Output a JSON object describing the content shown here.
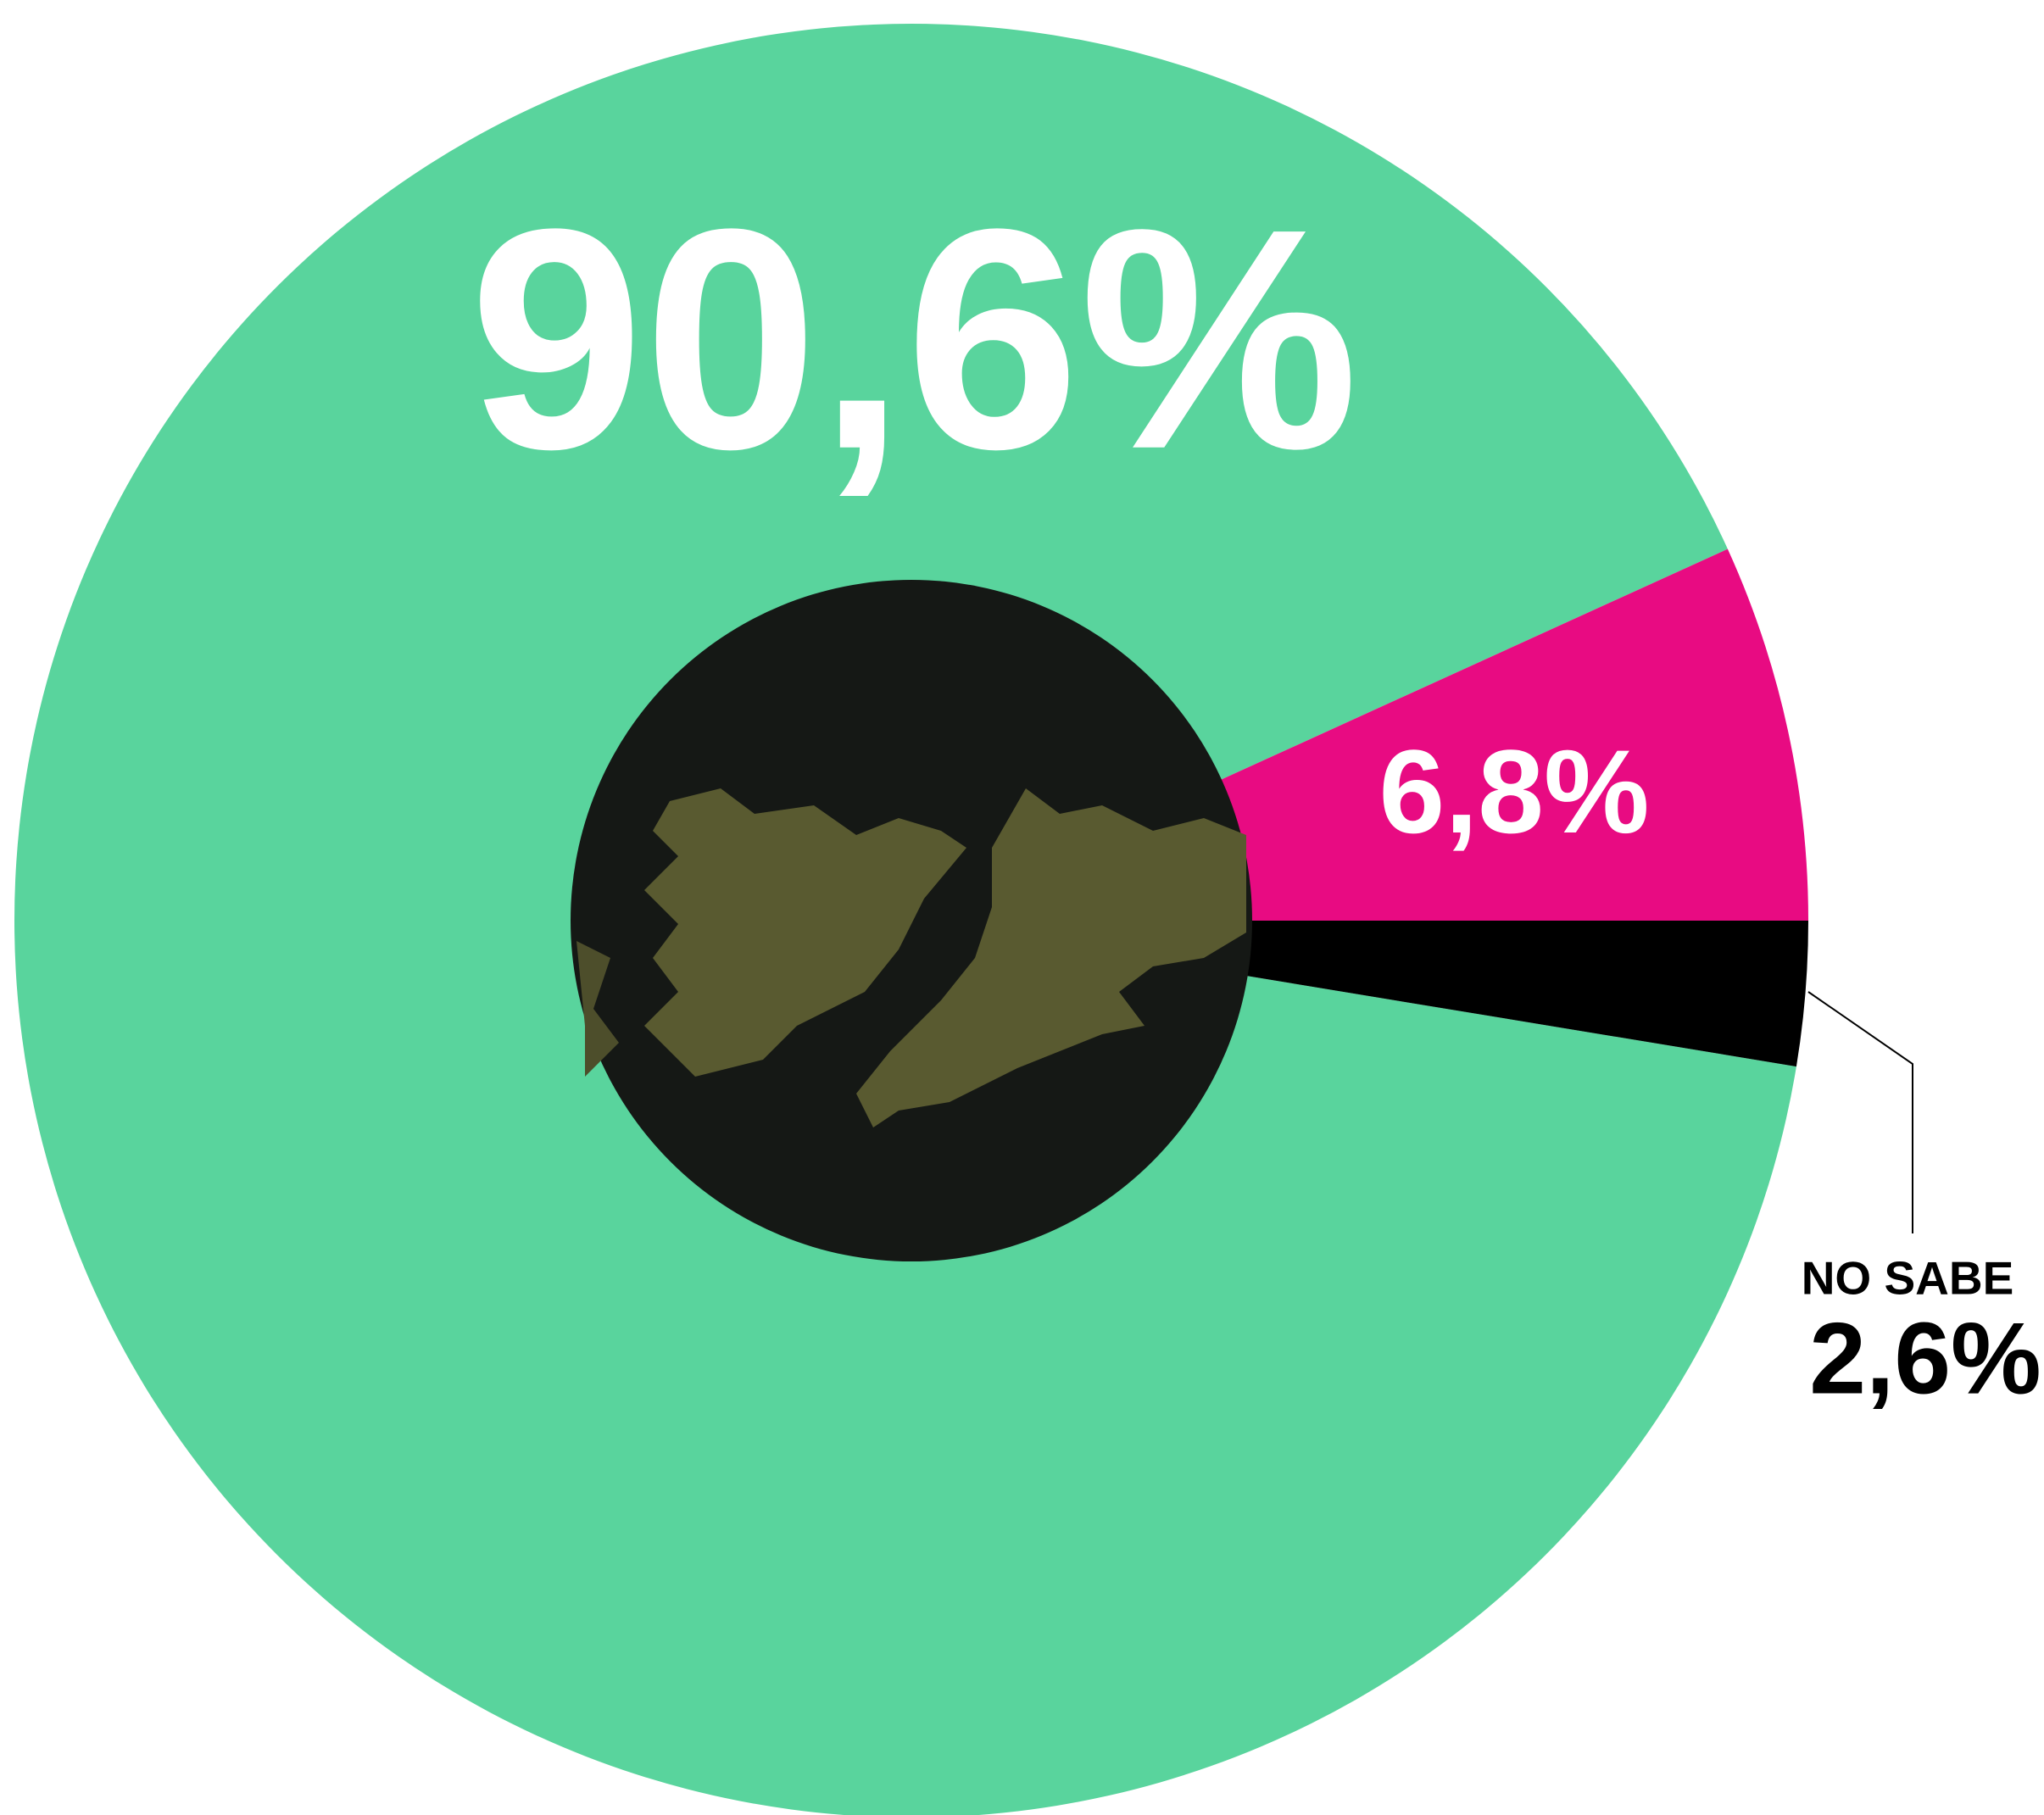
{
  "chart_data": {
    "type": "donut",
    "categories": [
      null,
      null,
      "NO SABE"
    ],
    "values": [
      90.6,
      6.8,
      2.6
    ],
    "value_labels": [
      "90,6%",
      "6,8%",
      "2,6%"
    ],
    "colors": [
      "#59d49d",
      "#e80b82",
      "#000000"
    ]
  }
}
